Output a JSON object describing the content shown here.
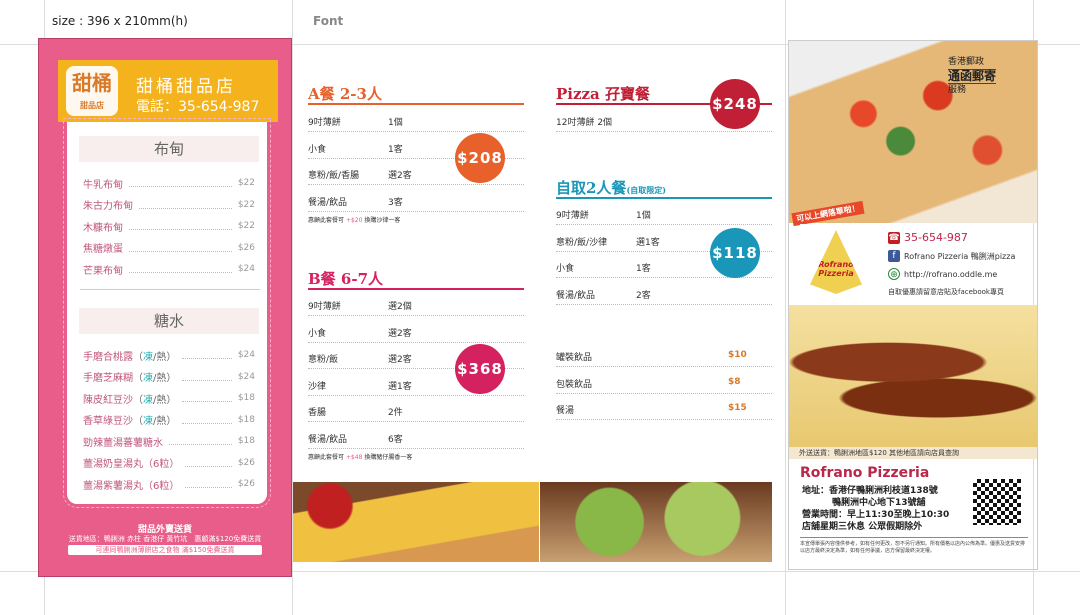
{
  "top": {
    "size_label": "size : 396 x 210mm(h)",
    "font_label": "Font"
  },
  "dessert": {
    "logo_text": "甜桶",
    "logo_sub": "甜品店",
    "shop_name": "甜桶甜品店",
    "phone": "電話：35-654-987",
    "sections": [
      {
        "title": "布甸",
        "items": [
          {
            "name": "牛乳布甸",
            "note": "",
            "price": "$22"
          },
          {
            "name": "朱古力布甸",
            "note": "",
            "price": "$22"
          },
          {
            "name": "木糠布甸",
            "note": "",
            "price": "$22"
          },
          {
            "name": "焦糖燉蛋",
            "note": "",
            "price": "$26"
          },
          {
            "name": "芒果布甸",
            "note": "",
            "price": "$24"
          }
        ]
      },
      {
        "title": "糖水",
        "items": [
          {
            "name": "手磨合桃露",
            "cold": "凍",
            "hot": "/熱）",
            "price": "$24"
          },
          {
            "name": "手磨芝麻糊",
            "cold": "凍",
            "hot": "/熱）",
            "price": "$24"
          },
          {
            "name": "陳皮紅豆沙",
            "cold": "凍",
            "hot": "/熱）",
            "price": "$18"
          },
          {
            "name": "香草綠豆沙",
            "cold": "凍",
            "hot": "/熱）",
            "price": "$18"
          },
          {
            "name": "勁辣薑湯蕃薯糖水",
            "cold": "",
            "hot": "",
            "price": "$18"
          },
          {
            "name": "薑湯奶皇湯丸（6粒）",
            "cold": "",
            "hot": "",
            "price": "$26"
          },
          {
            "name": "薑湯紫薯湯丸（6粒）",
            "cold": "",
            "hot": "",
            "price": "$26"
          }
        ]
      }
    ],
    "footer_title": "甜品外賣送貨",
    "footer_line": "送貨地區：鴨脷洲 赤柱 香港仔 黃竹坑　惠顧滿$120免費送貨",
    "footer_note": "可連同鴨脷洲薄餅店之食物 滿$150免費送貨"
  },
  "sets": {
    "a": {
      "title": "A餐 2-3人",
      "price": "$208",
      "color": "#e8602a",
      "rows": [
        [
          "9吋薄餅",
          "1個"
        ],
        [
          "小食",
          "1客"
        ],
        [
          "意粉/飯/香腸",
          "選2客"
        ],
        [
          "餐湯/飲品",
          "3客"
        ]
      ],
      "note_pre": "惠顧此套餐可",
      "note_add": "+$20",
      "note_post": "換購沙律一客"
    },
    "b": {
      "title": "B餐 6-7人",
      "price": "$368",
      "color": "#d42260",
      "rows": [
        [
          "9吋薄餅",
          "選2個"
        ],
        [
          "小食",
          "選2客"
        ],
        [
          "意粉/飯",
          "選2客"
        ],
        [
          "沙律",
          "選1客"
        ],
        [
          "香腸",
          "2件"
        ],
        [
          "餐湯/飲品",
          "6客"
        ]
      ],
      "note_pre": "惠顧此套餐可",
      "note_add": "+$48",
      "note_post": "換購豬仔腸香一客"
    },
    "pizza": {
      "title": "Pizza 孖寶餐",
      "price": "$248",
      "color": "#c01f35",
      "rows": [
        [
          "12吋薄餅 2個",
          ""
        ]
      ]
    },
    "pickup": {
      "title": "自取2人餐",
      "subtitle": "(自取限定)",
      "price": "$118",
      "color": "#1a96b8",
      "rows": [
        [
          "9吋薄餅",
          "1個"
        ],
        [
          "意粉/飯/沙律",
          "選1客"
        ],
        [
          "小食",
          "1客"
        ],
        [
          "餐湯/飲品",
          "2客"
        ]
      ]
    },
    "drinks": [
      [
        "罐裝飲品",
        "$10"
      ],
      [
        "包裝飲品",
        "$8"
      ],
      [
        "餐湯",
        "$15"
      ]
    ]
  },
  "pizzeria": {
    "stamp_top": "香港郵政",
    "stamp_main": "通函郵寄",
    "stamp_bottom": "服務",
    "online_badge": "可以上網落單啦！",
    "logo_text": "Rofrano Pizzeria",
    "phone": "35-654-987",
    "facebook": "Rofrano Pizzeria 鴨脷洲pizza",
    "website": "http://rofrano.oddle.me",
    "info_note": "自取優惠請留意店貼及facebook專頁",
    "delivery": "外送送貨：鴨脷洲地區$120 其他地區請向店員查詢",
    "name": "Rofrano Pizzeria",
    "address1": "地址：香港仔鴨脷洲利枝道138號",
    "address2": "鴨脷洲中心地下13號舖",
    "hours": "營業時間：早上11:30至晚上10:30",
    "closed": "店舖星期三休息 公眾假期除外",
    "fine_print": "本宣傳單張內容僅供參考，如有任何更改，恕不另行通知。所有價格以店內公佈為準。優惠及送貨安排以店方最終決定為準，如有任何爭議，店方保留最終決定權。"
  },
  "colors": {
    "pink": "#e85d8a",
    "yellow": "#f4b21c",
    "orange": "#e8602a",
    "magenta": "#d42260",
    "red": "#c01f35",
    "teal": "#1a96b8"
  }
}
